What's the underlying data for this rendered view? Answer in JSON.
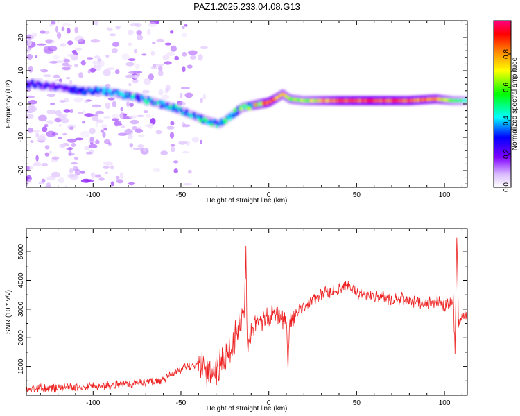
{
  "figure": {
    "title": "PAZ1.2025.233.04.08.G13"
  },
  "chart_data": [
    {
      "type": "heatmap",
      "xlabel": "Height of straight line (km)",
      "ylabel": "Frequency (Hz)",
      "xlim": [
        -138,
        113
      ],
      "ylim": [
        -25,
        25
      ],
      "xticks": [
        -100,
        -50,
        0,
        50,
        100
      ],
      "yticks": [
        -20,
        -10,
        0,
        10,
        20
      ],
      "colorbar": {
        "label": "Normalized spectral amplitude",
        "range": [
          0,
          1
        ],
        "ticks": [
          0.0,
          0.2,
          0.4,
          0.6,
          0.8
        ],
        "colormap": [
          "#ffffff",
          "#d9b8ff",
          "#8000ff",
          "#0000ff",
          "#00ffff",
          "#00ff00",
          "#ffff00",
          "#ff8000",
          "#ff0000",
          "#ff0080"
        ]
      },
      "ridge": {
        "x": [
          -135,
          -120,
          -105,
          -95,
          -85,
          -75,
          -65,
          -55,
          -45,
          -38,
          -32,
          -28,
          -25,
          -20,
          -15,
          -10,
          -5,
          0,
          5,
          8,
          12,
          20,
          40,
          60,
          80,
          95,
          105,
          110,
          113
        ],
        "y": [
          6,
          5,
          4,
          4,
          3,
          2,
          0.5,
          -1,
          -3,
          -4.5,
          -5.5,
          -6,
          -5,
          -3,
          -1,
          -0.5,
          0,
          0.5,
          2,
          3,
          1.5,
          1,
          1,
          1,
          1,
          1.5,
          1,
          1,
          1
        ],
        "amplitude": [
          0.3,
          0.3,
          0.35,
          0.4,
          0.45,
          0.45,
          0.45,
          0.45,
          0.45,
          0.5,
          0.5,
          0.45,
          0.45,
          0.45,
          0.6,
          0.65,
          0.8,
          0.9,
          0.75,
          0.7,
          0.65,
          0.6,
          0.85,
          0.9,
          0.85,
          0.8,
          0.55,
          0.5,
          0.45
        ]
      },
      "noise_region_x": [
        -138,
        -70
      ]
    },
    {
      "type": "line",
      "xlabel": "Height of straight line (km)",
      "ylabel": "SNR (10 * v/v)",
      "xlim": [
        -138,
        113
      ],
      "ylim": [
        0,
        5800
      ],
      "xticks": [
        -100,
        -50,
        0,
        50,
        100
      ],
      "yticks": [
        1000,
        2000,
        3000,
        4000,
        5000
      ],
      "line_color": "#ee2222",
      "series": [
        {
          "x": [
            -138,
            -130,
            -120,
            -110,
            -100,
            -90,
            -80,
            -70,
            -60,
            -55,
            -50,
            -45,
            -40,
            -35,
            -32,
            -30,
            -28,
            -25,
            -22,
            -20,
            -18,
            -16,
            -14,
            -13,
            -12,
            -10,
            -8,
            -5,
            0,
            5,
            10,
            11,
            12,
            15,
            20,
            25,
            30,
            35,
            40,
            44,
            46,
            50,
            55,
            60,
            65,
            70,
            75,
            80,
            85,
            90,
            95,
            100,
            103,
            105,
            106,
            107,
            108,
            110,
            113
          ],
          "y": [
            200,
            250,
            250,
            280,
            300,
            350,
            400,
            450,
            550,
            700,
            900,
            1000,
            1100,
            900,
            750,
            900,
            1100,
            1300,
            1500,
            1800,
            2200,
            2600,
            3000,
            4700,
            1200,
            2200,
            2400,
            2600,
            2700,
            2800,
            2600,
            1100,
            2500,
            2800,
            3100,
            3300,
            3500,
            3600,
            3700,
            3750,
            3800,
            3600,
            3500,
            3400,
            3450,
            3300,
            3350,
            3300,
            3250,
            3200,
            3300,
            3100,
            3200,
            3400,
            1500,
            5600,
            2500,
            2700,
            2800
          ]
        }
      ]
    }
  ]
}
